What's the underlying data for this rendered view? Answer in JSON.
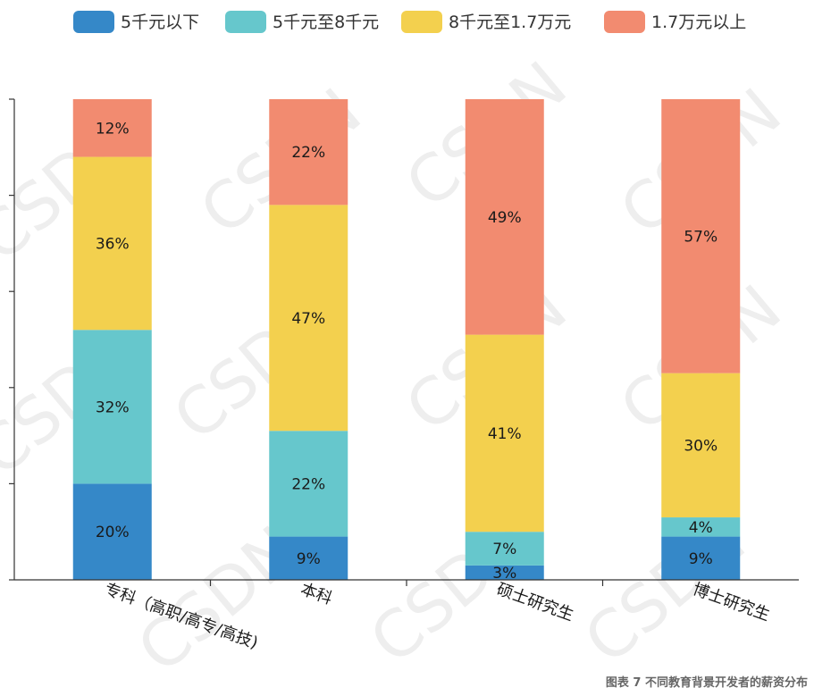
{
  "chart_data": {
    "type": "bar",
    "stacked": true,
    "percent": true,
    "categories": [
      "专科（高职/高专/高技)",
      "本科",
      "硕士研究生",
      "博士研究生"
    ],
    "series": [
      {
        "name": "5千元以下",
        "color": "#3588c8",
        "values": [
          20,
          9,
          3,
          9
        ]
      },
      {
        "name": "5千元至8千元",
        "color": "#66c7cc",
        "values": [
          32,
          22,
          7,
          4
        ]
      },
      {
        "name": "8千元至1.7万元",
        "color": "#f3d04e",
        "values": [
          36,
          47,
          41,
          30
        ]
      },
      {
        "name": "1.7万元以上",
        "color": "#f28b70",
        "values": [
          12,
          22,
          49,
          57
        ]
      }
    ],
    "legend_position": "top",
    "value_suffix": "%",
    "ylim": [
      0,
      100
    ],
    "grid": false
  },
  "caption": "图表 7  不同教育背景开发者的薪资分布",
  "watermark": "CSDN"
}
